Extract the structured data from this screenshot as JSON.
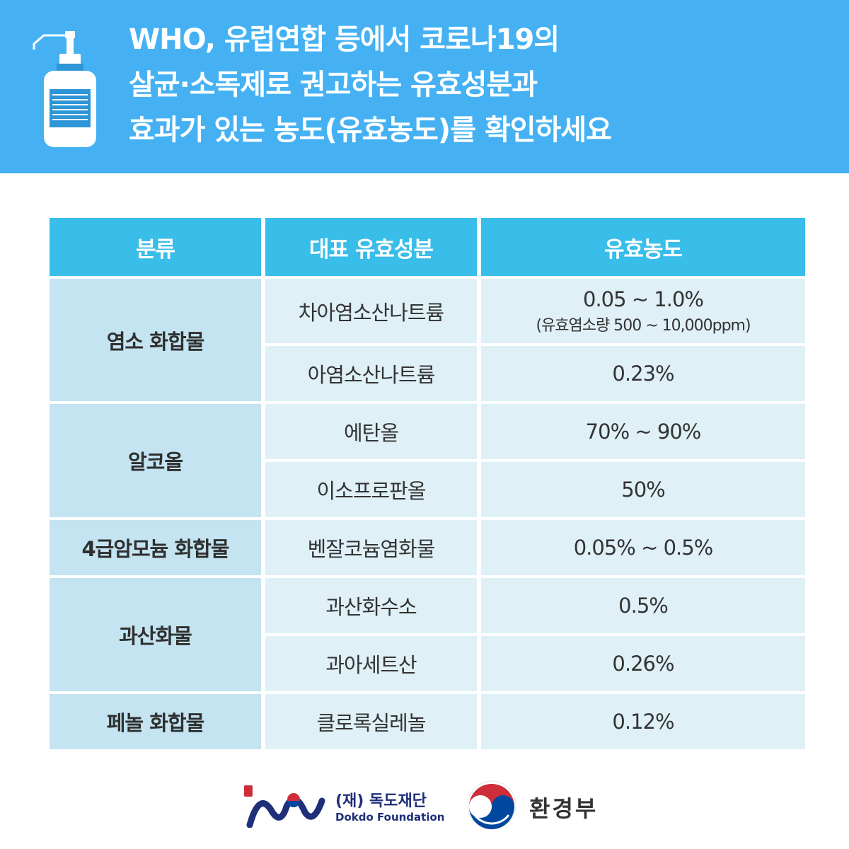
{
  "header": {
    "title_lines": [
      "WHO, 유럽연합 등에서 코로나19의",
      "살균·소독제로 권고하는 유효성분과",
      "효과가 있는 농도(유효농도)를 확인하세요"
    ]
  },
  "table": {
    "headers": [
      "분류",
      "대표 유효성분",
      "유효농도"
    ],
    "categories": [
      "염소 화합물",
      "알코올",
      "4급암모늄 화합물",
      "과산화물",
      "페놀 화합물"
    ],
    "rows": [
      {
        "ingredient": "차아염소산나트륨",
        "concentration": "0.05 ~ 1.0%",
        "note": "(유효염소량 500 ~ 10,000ppm)"
      },
      {
        "ingredient": "아염소산나트륨",
        "concentration": "0.23%"
      },
      {
        "ingredient": "에탄올",
        "concentration": "70% ~ 90%"
      },
      {
        "ingredient": "이소프로판올",
        "concentration": "50%"
      },
      {
        "ingredient": "벤잘코늄염화물",
        "concentration": "0.05% ~ 0.5%"
      },
      {
        "ingredient": "과산화수소",
        "concentration": "0.5%"
      },
      {
        "ingredient": "과아세트산",
        "concentration": "0.26%"
      },
      {
        "ingredient": "클로록실레놀",
        "concentration": "0.12%"
      }
    ]
  },
  "footer": {
    "dokdo_name": "(재) 독도재단",
    "dokdo_en": "Dokdo Foundation",
    "gov_name": "환경부"
  },
  "colors": {
    "header_bg": "#45b1f3",
    "table_head": "#39bde9",
    "category_cell": "#c3e4f0",
    "value_cell": "#dff0f7",
    "logo_navy": "#1f2f7a",
    "emblem_red": "#cd2e3a",
    "emblem_blue": "#0047a0"
  },
  "icons": [
    "hand-sanitizer-bottle-icon",
    "dokdo-foundation-logo",
    "government-emblem-logo"
  ]
}
